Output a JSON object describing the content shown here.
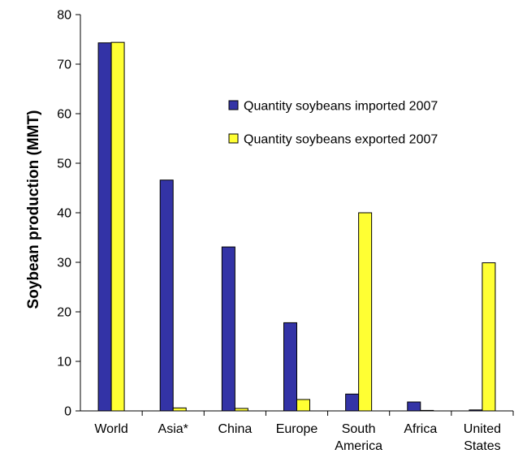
{
  "chart_data": {
    "type": "bar",
    "categories": [
      [
        "World"
      ],
      [
        "Asia*"
      ],
      [
        "China"
      ],
      [
        "Europe"
      ],
      [
        "South",
        "America"
      ],
      [
        "Africa"
      ],
      [
        "United",
        "States"
      ]
    ],
    "series": [
      {
        "name": "Quantity soybeans imported 2007",
        "color": "#3333a6",
        "values": [
          74.3,
          46.6,
          33.1,
          17.8,
          3.4,
          1.8,
          0.2
        ]
      },
      {
        "name": "Quantity soybeans exported 2007",
        "color": "#ffff33",
        "values": [
          74.4,
          0.6,
          0.5,
          2.3,
          40.0,
          0.1,
          29.9
        ]
      }
    ],
    "title": "",
    "xlabel": "",
    "ylabel": "Soybean production (MMT)",
    "ylim": [
      0,
      80
    ],
    "yticks": [
      0,
      10,
      20,
      30,
      40,
      50,
      60,
      70,
      80
    ],
    "grid": false,
    "legend_position": "upper-right"
  }
}
